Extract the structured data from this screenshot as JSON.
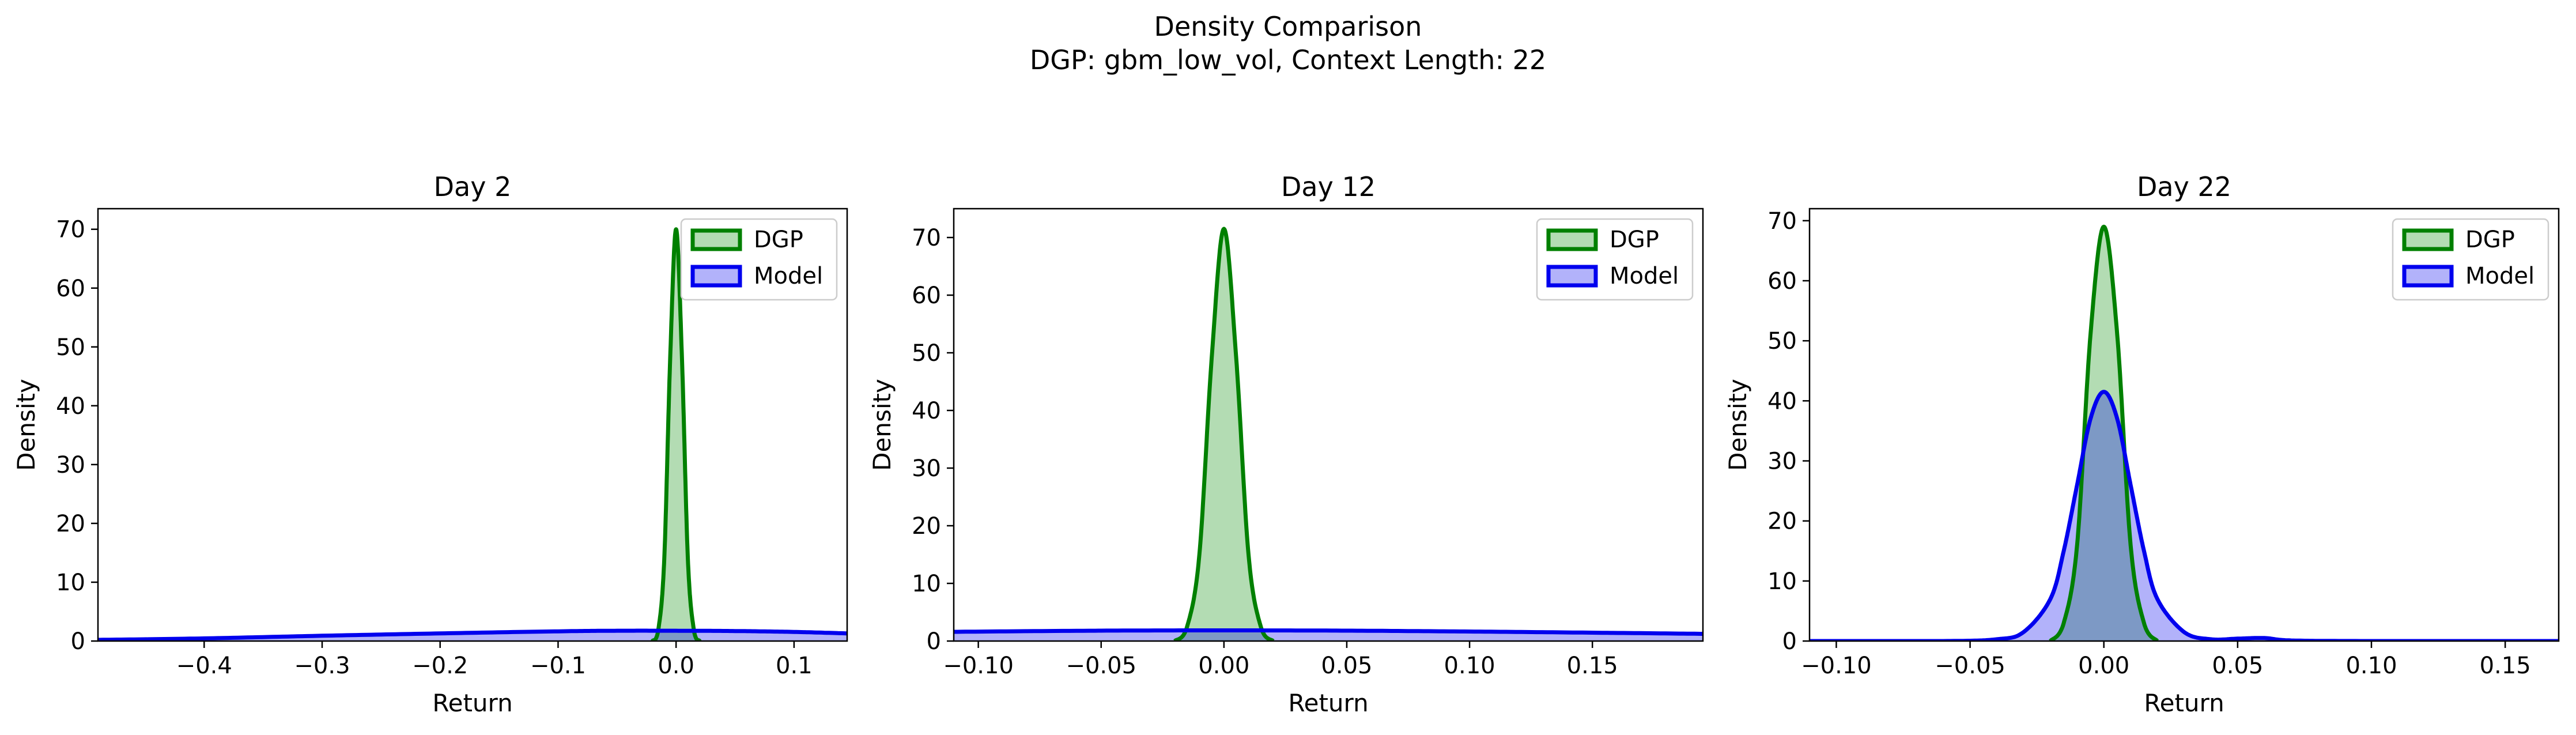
{
  "figure": {
    "title_line1": "Density Comparison",
    "title_line2": "DGP: gbm_low_vol, Context Length: 22"
  },
  "colors": {
    "dgp_line": "#008000",
    "dgp_fill": "#b3dcb3",
    "model_line": "#0000ee",
    "model_fill": "#b3b3f0",
    "overlap_fill": "#7b90c6"
  },
  "chart_data": [
    {
      "type": "area",
      "title": "Day 2",
      "xlabel": "Return",
      "ylabel": "Density",
      "xlim": [
        -0.49,
        0.145
      ],
      "ylim": [
        0,
        73.5
      ],
      "xticks": [
        -0.4,
        -0.3,
        -0.2,
        -0.1,
        0.0,
        0.1
      ],
      "xtick_labels": [
        "−0.4",
        "−0.3",
        "−0.2",
        "−0.1",
        "0.0",
        "0.1"
      ],
      "yticks": [
        0,
        10,
        20,
        30,
        40,
        50,
        60,
        70
      ],
      "ytick_labels": [
        "0",
        "10",
        "20",
        "30",
        "40",
        "50",
        "60",
        "70"
      ],
      "legend": "upper-right",
      "series": [
        {
          "name": "DGP",
          "x": [
            -0.02,
            -0.015,
            -0.01,
            -0.005,
            0.0,
            0.005,
            0.01,
            0.015,
            0.02
          ],
          "y": [
            0,
            2,
            14,
            48,
            70,
            48,
            14,
            2,
            0
          ]
        },
        {
          "name": "Model",
          "x": [
            -0.49,
            -0.4,
            -0.3,
            -0.2,
            -0.1,
            -0.05,
            0.0,
            0.05,
            0.1,
            0.145
          ],
          "y": [
            0.2,
            0.45,
            0.9,
            1.3,
            1.65,
            1.75,
            1.75,
            1.7,
            1.55,
            1.3
          ]
        }
      ]
    },
    {
      "type": "area",
      "title": "Day 12",
      "xlabel": "Return",
      "ylabel": "Density",
      "xlim": [
        -0.11,
        0.195
      ],
      "ylim": [
        0,
        75
      ],
      "xticks": [
        -0.1,
        -0.05,
        0.0,
        0.05,
        0.1,
        0.15
      ],
      "xtick_labels": [
        "−0.10",
        "−0.05",
        "0.00",
        "0.05",
        "0.10",
        "0.15"
      ],
      "yticks": [
        0,
        10,
        20,
        30,
        40,
        50,
        60,
        70
      ],
      "ytick_labels": [
        "0",
        "10",
        "20",
        "30",
        "40",
        "50",
        "60",
        "70"
      ],
      "legend": "upper-right",
      "series": [
        {
          "name": "DGP",
          "x": [
            -0.02,
            -0.015,
            -0.01,
            -0.005,
            0.0,
            0.005,
            0.01,
            0.015,
            0.02
          ],
          "y": [
            0,
            2.5,
            15,
            49,
            71.5,
            49,
            15,
            2.5,
            0
          ]
        },
        {
          "name": "Model",
          "x": [
            -0.11,
            -0.05,
            0.0,
            0.05,
            0.1,
            0.15,
            0.195
          ],
          "y": [
            1.6,
            1.8,
            1.85,
            1.8,
            1.65,
            1.45,
            1.25
          ]
        }
      ]
    },
    {
      "type": "area",
      "title": "Day 22",
      "xlabel": "Return",
      "ylabel": "Density",
      "xlim": [
        -0.11,
        0.17
      ],
      "ylim": [
        0,
        72
      ],
      "xticks": [
        -0.1,
        -0.05,
        0.0,
        0.05,
        0.1,
        0.15
      ],
      "xtick_labels": [
        "−0.10",
        "−0.05",
        "0.00",
        "0.05",
        "0.10",
        "0.15"
      ],
      "yticks": [
        0,
        10,
        20,
        30,
        40,
        50,
        60,
        70
      ],
      "ytick_labels": [
        "0",
        "10",
        "20",
        "30",
        "40",
        "50",
        "60",
        "70"
      ],
      "legend": "upper-right",
      "series": [
        {
          "name": "DGP",
          "x": [
            -0.02,
            -0.015,
            -0.01,
            -0.005,
            0.0,
            0.005,
            0.01,
            0.015,
            0.02
          ],
          "y": [
            0,
            3,
            16,
            51,
            69,
            51,
            16,
            3,
            0
          ]
        },
        {
          "name": "Model",
          "x": [
            -0.11,
            -0.06,
            -0.04,
            -0.03,
            -0.02,
            -0.015,
            -0.01,
            -0.005,
            0.0,
            0.005,
            0.01,
            0.015,
            0.02,
            0.03,
            0.04,
            0.05,
            0.06,
            0.07,
            0.1,
            0.17
          ],
          "y": [
            0,
            0,
            0.3,
            1.5,
            7,
            15,
            26,
            37,
            41.5,
            37,
            26,
            15,
            7,
            1.5,
            0.3,
            0.4,
            0.5,
            0.1,
            0,
            0
          ]
        }
      ]
    }
  ]
}
